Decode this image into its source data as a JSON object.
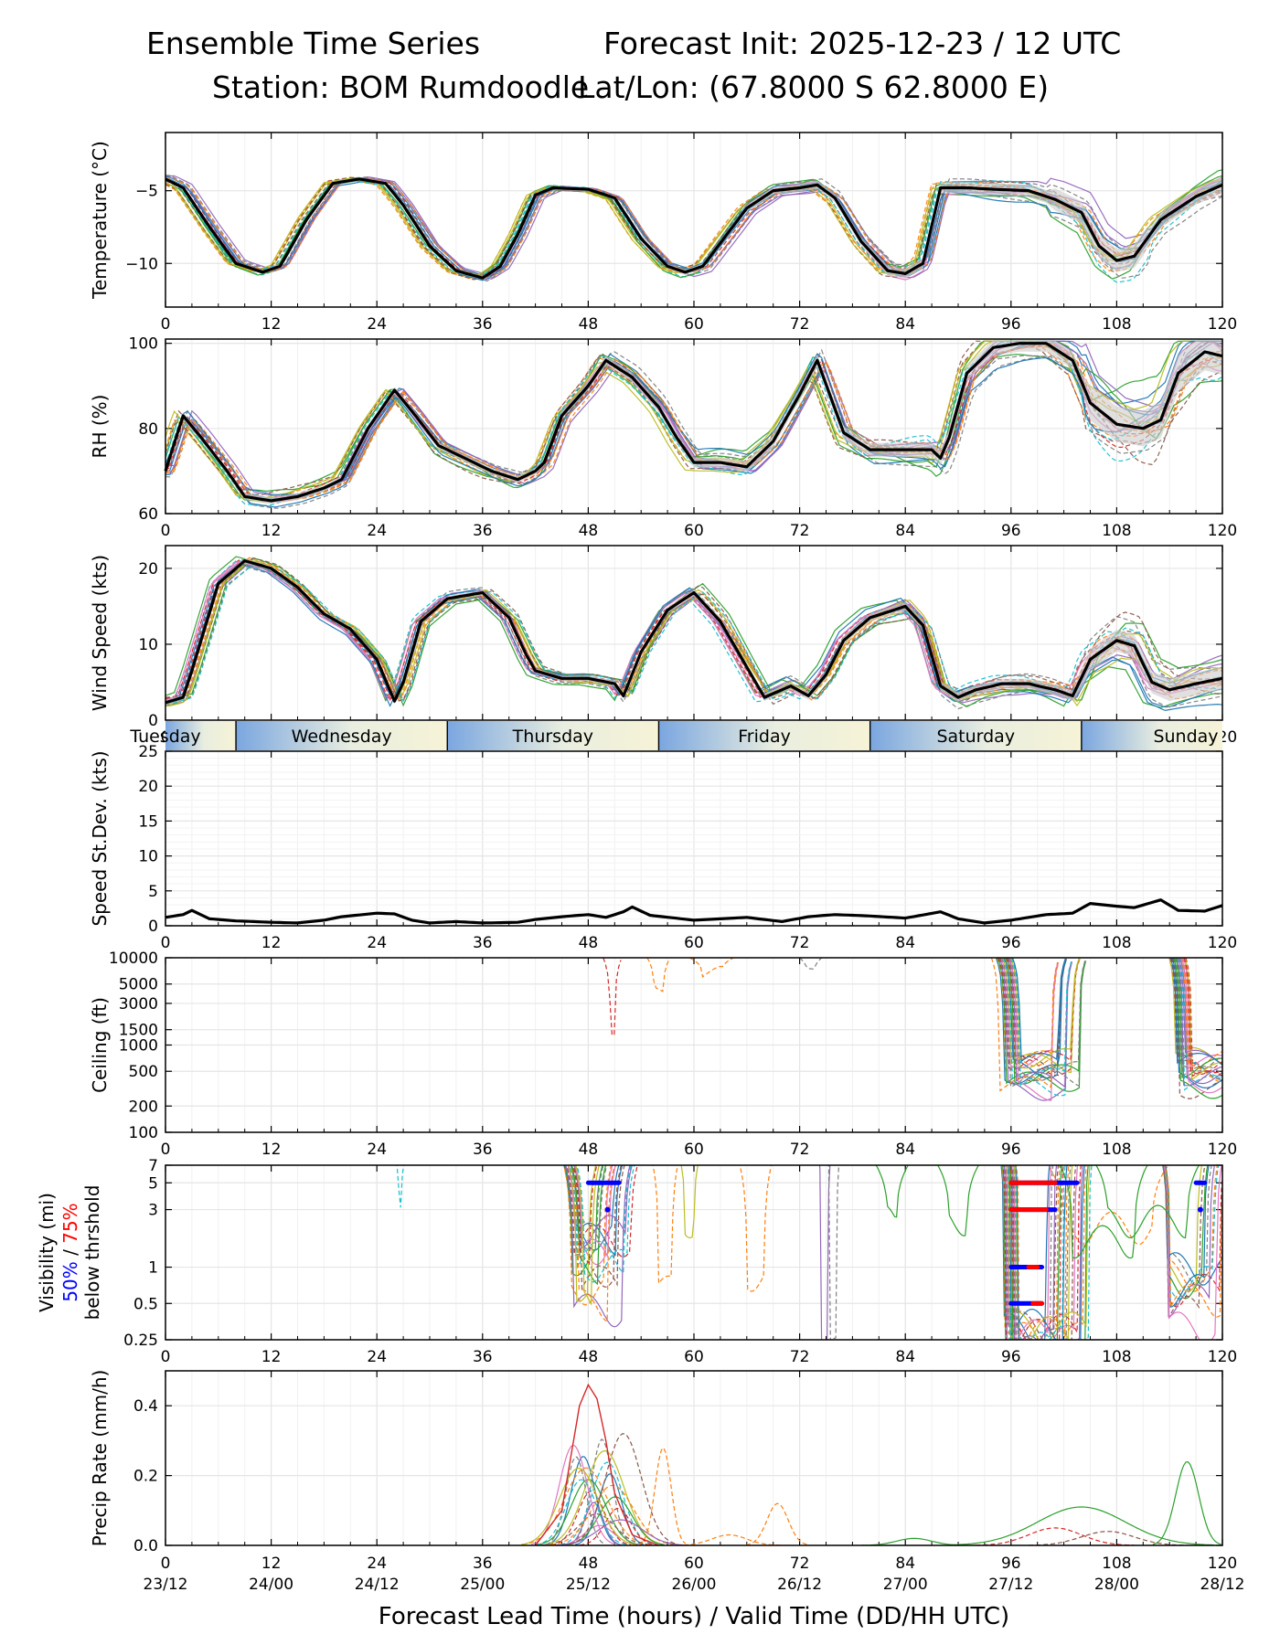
{
  "header": {
    "title": "Ensemble Time Series",
    "init": "Forecast Init: 2025-12-23 / 12 UTC",
    "station": "Station: BOM Rumdoodle",
    "latlon": "Lat/Lon: (67.8000 S 62.8000 E)"
  },
  "x_ticks": [
    0,
    12,
    24,
    36,
    48,
    60,
    72,
    84,
    96,
    108,
    120
  ],
  "valid_time_labels": [
    "23/12",
    "24/00",
    "24/12",
    "25/00",
    "25/12",
    "26/00",
    "26/12",
    "27/00",
    "27/12",
    "28/00",
    "28/12"
  ],
  "x_label": "Forecast Lead Time (hours) / Valid Time (DD/HH UTC)",
  "day_bar": {
    "days": [
      "Tuesday",
      "Wednesday",
      "Thursday",
      "Friday",
      "Saturday",
      "Sunday"
    ],
    "boundaries_hours": [
      8,
      32,
      56,
      80,
      104
    ]
  },
  "visibility_label": {
    "line1": "Visibility (mi)",
    "p50": "50%",
    "sep": " / ",
    "p75": "75%",
    "line3": "below thrshold"
  },
  "colors": {
    "mean": "#000000",
    "members": [
      "#1f77b4",
      "#ff7f0e",
      "#2ca02c",
      "#d62728",
      "#9467bd",
      "#8c564b",
      "#e377c2",
      "#7f7f7f",
      "#bcbd22",
      "#17becf"
    ],
    "p50": "#0000ff",
    "p75": "#ff0000",
    "grid": "#e5e5e5",
    "spread": "#cccccc"
  },
  "chart_data": [
    {
      "type": "line",
      "id": "temperature",
      "ylabel": "Temperature (°C)",
      "ylim": [
        -13,
        -1
      ],
      "yticks": [
        -10,
        -5
      ],
      "x_unit": "forecast lead hours",
      "mean": {
        "x": [
          0,
          2,
          5,
          8,
          11,
          13,
          16,
          19,
          22,
          25,
          27,
          30,
          33,
          36,
          38,
          40,
          42,
          44,
          48,
          51,
          54,
          57,
          59,
          61,
          63,
          66,
          69,
          72,
          74,
          76,
          79,
          82,
          84,
          86,
          88,
          91,
          94,
          98,
          101,
          104,
          106,
          108,
          110,
          113,
          117,
          120
        ],
        "y": [
          -4.2,
          -4.8,
          -7.5,
          -10.0,
          -10.6,
          -10.2,
          -7.0,
          -4.5,
          -4.2,
          -4.5,
          -6.0,
          -8.8,
          -10.5,
          -11.0,
          -10.2,
          -8.0,
          -5.3,
          -4.8,
          -4.9,
          -5.5,
          -8.3,
          -10.2,
          -10.6,
          -10.2,
          -8.6,
          -6.2,
          -5.0,
          -4.8,
          -4.6,
          -5.5,
          -8.5,
          -10.5,
          -10.7,
          -10.0,
          -4.8,
          -4.8,
          -4.9,
          -5.0,
          -5.6,
          -6.5,
          -8.8,
          -9.8,
          -9.5,
          -7.0,
          -5.4,
          -4.6
        ]
      }
    },
    {
      "type": "line",
      "id": "rh",
      "ylabel": "RH (%)",
      "ylim": [
        60,
        101
      ],
      "yticks": [
        60,
        80,
        100
      ],
      "mean": {
        "x": [
          0,
          2,
          4,
          7,
          9,
          12,
          15,
          18,
          20,
          23,
          26,
          28,
          31,
          34,
          37,
          40,
          42,
          43,
          45,
          48,
          50,
          53,
          56,
          58,
          60,
          63,
          66,
          69,
          72,
          74,
          77,
          80,
          84,
          87,
          88,
          89,
          91,
          94,
          97,
          100,
          103,
          105,
          108,
          111,
          113,
          115,
          118,
          120
        ],
        "y": [
          70,
          83,
          78,
          70,
          64,
          63,
          64,
          66,
          68,
          80,
          89,
          84,
          76,
          73,
          70,
          68,
          70,
          72,
          83,
          90,
          96,
          92,
          85,
          78,
          72,
          72,
          71,
          77,
          88,
          96,
          79,
          75,
          75,
          75,
          73,
          78,
          93,
          99,
          100,
          100,
          96,
          86,
          81,
          80,
          82,
          93,
          98,
          97
        ]
      }
    },
    {
      "type": "line",
      "id": "wind",
      "ylabel": "Wind Speed (kts)",
      "ylim": [
        0,
        23
      ],
      "yticks": [
        0,
        10,
        20
      ],
      "mean": {
        "x": [
          0,
          2,
          3,
          6,
          9,
          12,
          15,
          18,
          21,
          24,
          26,
          27,
          29,
          32,
          36,
          39,
          41,
          42,
          45,
          48,
          51,
          52,
          54,
          57,
          60,
          63,
          66,
          68,
          71,
          73,
          75,
          77,
          80,
          84,
          86,
          88,
          90,
          92,
          95,
          98,
          101,
          103,
          105,
          108,
          110,
          112,
          114,
          117,
          120
        ],
        "y": [
          2.3,
          3.0,
          6.5,
          18.0,
          21.0,
          20.0,
          17.5,
          14.0,
          12.0,
          8.0,
          2.5,
          5.0,
          13.0,
          16.0,
          16.8,
          13.5,
          8.5,
          6.5,
          5.5,
          5.5,
          4.8,
          3.2,
          9.0,
          14.5,
          16.8,
          13.0,
          7.0,
          3.0,
          4.5,
          3.2,
          6.0,
          10.5,
          13.5,
          15.0,
          12.5,
          4.5,
          3.0,
          4.0,
          4.8,
          4.8,
          4.0,
          3.2,
          8.0,
          10.5,
          9.8,
          5.0,
          4.0,
          4.8,
          5.5
        ]
      }
    },
    {
      "type": "line",
      "id": "speed_sd",
      "ylabel": "Speed St.Dev. (kts)",
      "ylim": [
        0,
        25
      ],
      "yticks": [
        0,
        5,
        10,
        15,
        20,
        25
      ],
      "series": {
        "x": [
          0,
          2,
          3,
          5,
          8,
          12,
          15,
          18,
          20,
          24,
          26,
          28,
          30,
          33,
          36,
          40,
          42,
          45,
          48,
          50,
          52,
          53,
          55,
          60,
          66,
          70,
          73,
          76,
          80,
          84,
          88,
          90,
          93,
          96,
          100,
          103,
          105,
          108,
          110,
          113,
          115,
          118,
          120
        ],
        "y": [
          1.2,
          1.6,
          2.2,
          1.0,
          0.7,
          0.5,
          0.4,
          0.8,
          1.3,
          1.8,
          1.7,
          0.8,
          0.4,
          0.6,
          0.4,
          0.5,
          0.9,
          1.3,
          1.6,
          1.2,
          2.0,
          2.7,
          1.5,
          0.8,
          1.2,
          0.6,
          1.3,
          1.6,
          1.4,
          1.1,
          2.0,
          1.0,
          0.4,
          0.8,
          1.6,
          1.8,
          3.2,
          2.8,
          2.6,
          3.7,
          2.2,
          2.1,
          2.9
        ]
      }
    },
    {
      "type": "line",
      "id": "ceiling",
      "ylabel": "Ceiling (ft)",
      "yscale": "log",
      "ylim": [
        100,
        10000
      ],
      "yticks": [
        100,
        200,
        500,
        1000,
        1500,
        3000,
        5000,
        10000
      ]
    },
    {
      "type": "line",
      "id": "visibility",
      "ylabel": "Visibility (mi)",
      "yscale": "log",
      "ylim": [
        0.25,
        7
      ],
      "yticks": [
        0.25,
        0.5,
        1,
        3,
        5,
        7
      ],
      "threshold_bars": {
        "p50_bars": [
          [
            48,
            51.5,
            5
          ],
          [
            96,
            103.5,
            5
          ],
          [
            96,
            101,
            3
          ],
          [
            96,
            99.5,
            1
          ],
          [
            96,
            99.5,
            0.5
          ],
          [
            117,
            118,
            5
          ]
        ],
        "p75_bars": [
          [
            96,
            101,
            5
          ],
          [
            96,
            100,
            3
          ],
          [
            98,
            99,
            1
          ],
          [
            98.5,
            99.5,
            0.5
          ]
        ]
      }
    },
    {
      "type": "line",
      "id": "precip",
      "ylabel": "Precip Rate (mm/h)",
      "ylim": [
        0,
        0.5
      ],
      "yticks": [
        0.0,
        0.2,
        0.4
      ],
      "peak_member": {
        "x": [
          42,
          45,
          47,
          48,
          49,
          50,
          51,
          53,
          56
        ],
        "y": [
          0,
          0.1,
          0.4,
          0.46,
          0.42,
          0.3,
          0.15,
          0.03,
          0
        ]
      }
    }
  ]
}
